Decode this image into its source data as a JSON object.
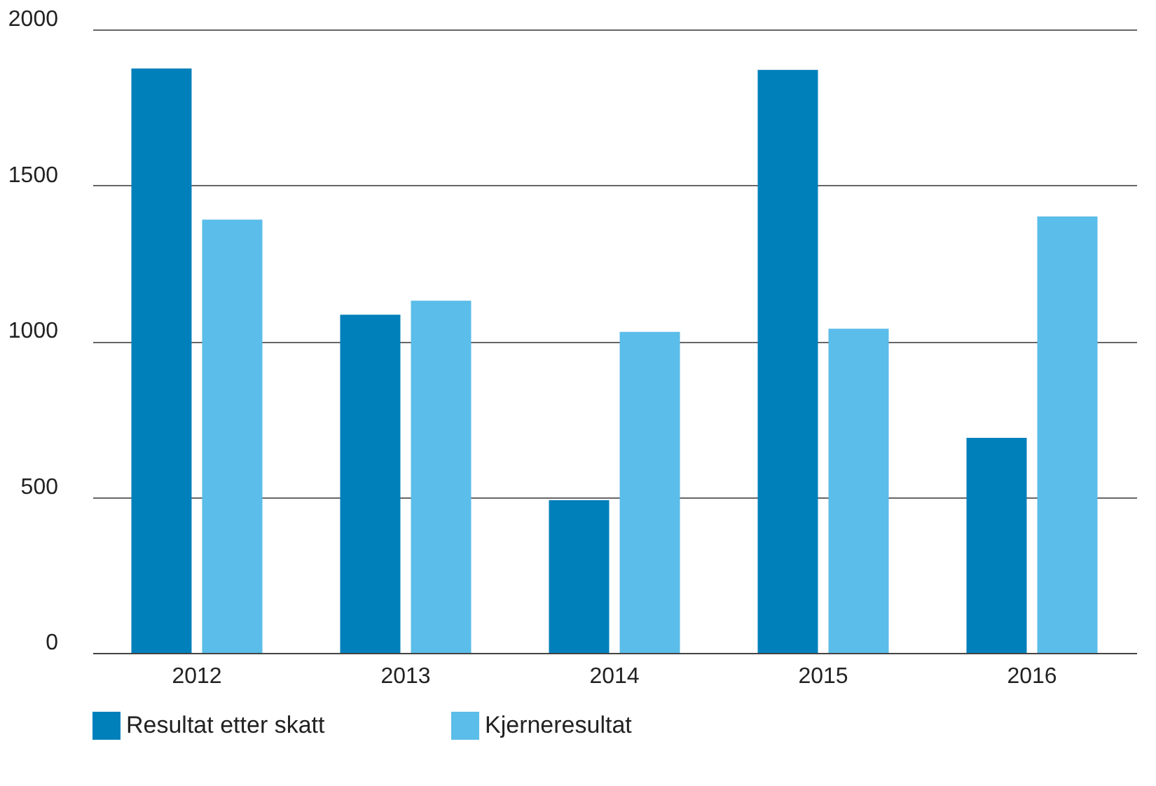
{
  "chart_data": {
    "type": "bar",
    "categories": [
      "2012",
      "2013",
      "2014",
      "2015",
      "2016"
    ],
    "series": [
      {
        "name": "Resultat etter skatt",
        "color": "#0080bb",
        "values": [
          1875,
          1085,
          490,
          1870,
          690
        ]
      },
      {
        "name": "Kjerneresultat",
        "color": "#5bbde9",
        "values": [
          1390,
          1130,
          1030,
          1040,
          1400
        ]
      }
    ],
    "ylim": [
      0,
      2000
    ],
    "yticks": [
      0,
      500,
      1000,
      1500,
      2000
    ],
    "grid": "y",
    "legend": "bottom"
  }
}
